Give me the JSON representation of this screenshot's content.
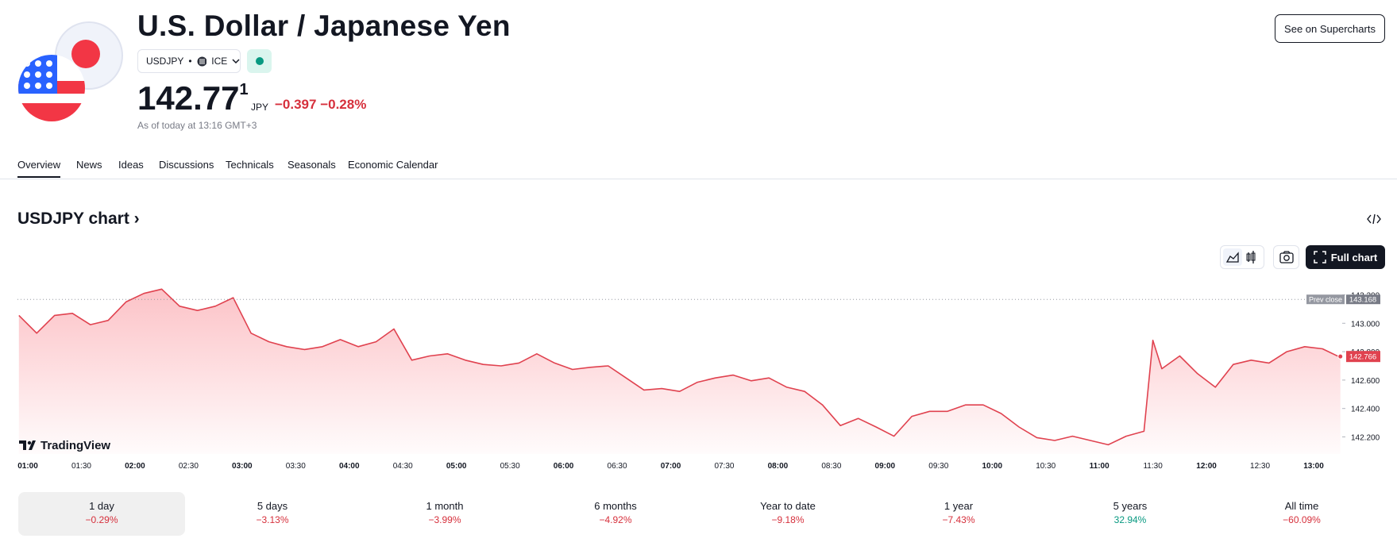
{
  "header": {
    "title": "U.S. Dollar / Japanese Yen",
    "symbol": "USDJPY",
    "exchange": "ICE",
    "price": "142.77",
    "price_extra_digit": "1",
    "currency": "JPY",
    "change": "−0.397 −0.28%",
    "as_of": "As of today at 13:16 GMT+3",
    "button": "See on Supercharts"
  },
  "tabs": [
    "Overview",
    "News",
    "Ideas",
    "Discussions",
    "Technicals",
    "Seasonals",
    "Economic Calendar"
  ],
  "chart_data": {
    "type": "line",
    "title": "USDJPY chart",
    "full_chart_button": "Full chart",
    "watermark": "TradingView",
    "color": "#e0424f",
    "x": [
      "00:55",
      "01:05",
      "01:15",
      "01:25",
      "01:35",
      "01:45",
      "01:55",
      "02:05",
      "02:15",
      "02:25",
      "02:35",
      "02:45",
      "02:55",
      "03:05",
      "03:15",
      "03:25",
      "03:35",
      "03:45",
      "03:55",
      "04:05",
      "04:15",
      "04:25",
      "04:35",
      "04:45",
      "04:55",
      "05:05",
      "05:15",
      "05:25",
      "05:35",
      "05:45",
      "05:55",
      "06:05",
      "06:15",
      "06:25",
      "06:35",
      "06:45",
      "06:55",
      "07:05",
      "07:15",
      "07:25",
      "07:35",
      "07:45",
      "07:55",
      "08:05",
      "08:15",
      "08:25",
      "08:35",
      "08:45",
      "08:55",
      "09:05",
      "09:15",
      "09:25",
      "09:35",
      "09:45",
      "09:55",
      "10:05",
      "10:15",
      "10:25",
      "10:35",
      "10:45",
      "10:55",
      "11:05",
      "11:15",
      "11:25",
      "11:30",
      "11:35",
      "11:45",
      "11:55",
      "12:05",
      "12:15",
      "12:25",
      "12:35",
      "12:45",
      "12:55",
      "13:05",
      "13:15"
    ],
    "values": [
      143.055,
      142.93,
      143.055,
      143.07,
      142.99,
      143.02,
      143.15,
      143.21,
      143.24,
      143.12,
      143.09,
      143.12,
      143.18,
      142.93,
      142.87,
      142.835,
      142.815,
      142.835,
      142.885,
      142.835,
      142.87,
      142.96,
      142.74,
      142.77,
      142.785,
      142.74,
      142.71,
      142.7,
      142.72,
      142.785,
      142.72,
      142.675,
      142.69,
      142.7,
      142.615,
      142.53,
      142.54,
      142.52,
      142.585,
      142.615,
      142.635,
      142.595,
      142.615,
      142.55,
      142.52,
      142.425,
      142.28,
      142.33,
      142.27,
      142.205,
      142.345,
      142.38,
      142.38,
      142.425,
      142.425,
      142.365,
      142.27,
      142.195,
      142.175,
      142.205,
      142.175,
      142.145,
      142.205,
      142.24,
      142.88,
      142.68,
      142.77,
      142.645,
      142.55,
      142.71,
      142.74,
      142.72,
      142.8,
      142.835,
      142.82,
      142.76
    ],
    "ylim": [
      142.08,
      143.32
    ],
    "yticks": [
      {
        "value": 142.2,
        "label": "142.200"
      },
      {
        "value": 142.4,
        "label": "142.400"
      },
      {
        "value": 142.6,
        "label": "142.600"
      },
      {
        "value": 142.8,
        "label": "142.800"
      },
      {
        "value": 143.0,
        "label": "143.000"
      },
      {
        "value": 143.2,
        "label": "143.200"
      }
    ],
    "xticks": [
      "01:00",
      "01:30",
      "02:00",
      "02:30",
      "03:00",
      "03:30",
      "04:00",
      "04:30",
      "05:00",
      "05:30",
      "06:00",
      "06:30",
      "07:00",
      "07:30",
      "08:00",
      "08:30",
      "09:00",
      "09:30",
      "10:00",
      "10:30",
      "11:00",
      "11:30",
      "12:00",
      "12:30",
      "13:00"
    ],
    "prev_close": {
      "label": "Prev close",
      "value": 143.168
    },
    "last_price": 142.766
  },
  "periods": [
    {
      "label": "1 day",
      "change": "−0.29%"
    },
    {
      "label": "5 days",
      "change": "−3.13%"
    },
    {
      "label": "1 month",
      "change": "−3.99%"
    },
    {
      "label": "6 months",
      "change": "−4.92%"
    },
    {
      "label": "Year to date",
      "change": "−9.18%"
    },
    {
      "label": "1 year",
      "change": "−7.43%"
    },
    {
      "label": "5 years",
      "change": "32.94%"
    },
    {
      "label": "All time",
      "change": "−60.09%"
    }
  ]
}
